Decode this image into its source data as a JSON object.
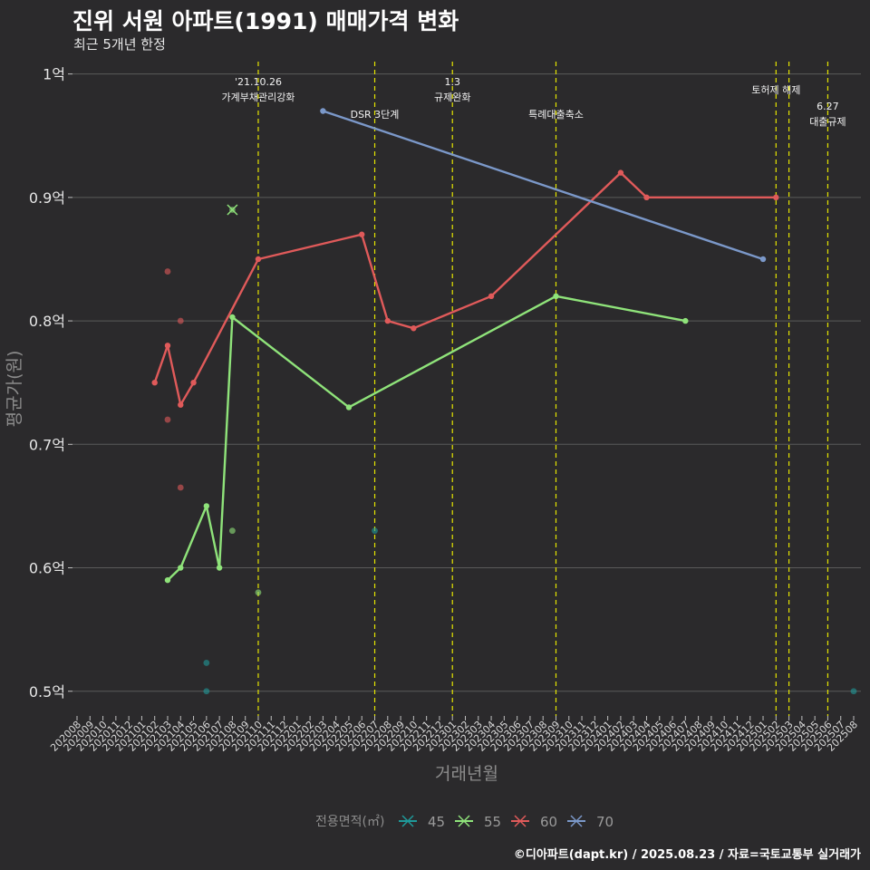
{
  "title": "진위 서원 아파트(1991) 매매가격 변화",
  "subtitle": "최근 5개년 한정",
  "caption": "©디아파트(dapt.kr) / 2025.08.23 / 자료=국토교통부 실거래가",
  "colors": {
    "background": "#2b2a2c",
    "grid": "#5a5a5a",
    "event_line": "#e6e600",
    "s45": "#1f9a9a",
    "s55": "#8fe37a",
    "s60": "#e05a5a",
    "s70": "#7b98c9"
  },
  "chart_data": {
    "type": "line",
    "title": "진위 서원 아파트(1991) 매매가격 변화",
    "xlabel": "거래년월",
    "ylabel": "평균가(원)",
    "ylim": [
      0.48,
      1.01
    ],
    "y_unit": "억",
    "y_ticks": [
      {
        "value": 0.5,
        "label": "0.5억"
      },
      {
        "value": 0.6,
        "label": "0.6억"
      },
      {
        "value": 0.7,
        "label": "0.7억"
      },
      {
        "value": 0.8,
        "label": "0.8억"
      },
      {
        "value": 0.9,
        "label": "0.9억"
      },
      {
        "value": 1.0,
        "label": "1억"
      }
    ],
    "x_categories": [
      "202008",
      "202009",
      "202010",
      "202011",
      "202012",
      "202101",
      "202102",
      "202103",
      "202104",
      "202105",
      "202106",
      "202107",
      "202108",
      "202109",
      "202110",
      "202111",
      "202112",
      "202201",
      "202202",
      "202203",
      "202204",
      "202205",
      "202206",
      "202207",
      "202208",
      "202209",
      "202210",
      "202211",
      "202212",
      "202301",
      "202302",
      "202303",
      "202304",
      "202305",
      "202306",
      "202307",
      "202308",
      "202309",
      "202310",
      "202311",
      "202312",
      "202401",
      "202402",
      "202403",
      "202404",
      "202405",
      "202406",
      "202407",
      "202408",
      "202409",
      "202410",
      "202411",
      "202412",
      "202501",
      "202502",
      "202503",
      "202504",
      "202505",
      "202506",
      "202507",
      "202508"
    ],
    "legend_title": "전용면적(㎡)",
    "legend_position": "bottom",
    "series": [
      {
        "name": "45",
        "color_key": "s45",
        "line": [],
        "points": [
          [
            "202106",
            0.523
          ],
          [
            "202106",
            0.5
          ],
          [
            "202207",
            0.63
          ],
          [
            "202508",
            0.5
          ]
        ]
      },
      {
        "name": "55",
        "color_key": "s55",
        "line": [
          [
            "202103",
            0.59
          ],
          [
            "202104",
            0.6
          ],
          [
            "202106",
            0.65
          ],
          [
            "202107",
            0.6
          ],
          [
            "202108",
            0.803
          ],
          [
            "202205",
            0.73
          ],
          [
            "202309",
            0.82
          ],
          [
            "202407",
            0.8
          ]
        ],
        "points": [
          [
            "202108",
            0.63
          ],
          [
            "202110",
            0.58
          ],
          [
            "202108",
            0.89
          ]
        ]
      },
      {
        "name": "60",
        "color_key": "s60",
        "line": [
          [
            "202102",
            0.75
          ],
          [
            "202103",
            0.78
          ],
          [
            "202104",
            0.732
          ],
          [
            "202105",
            0.75
          ],
          [
            "202110",
            0.85
          ],
          [
            "202206",
            0.87
          ],
          [
            "202208",
            0.8
          ],
          [
            "202210",
            0.794
          ],
          [
            "202304",
            0.82
          ],
          [
            "202402",
            0.92
          ],
          [
            "202404",
            0.9
          ],
          [
            "202502",
            0.9
          ]
        ],
        "points": [
          [
            "202103",
            0.84
          ],
          [
            "202104",
            0.8
          ],
          [
            "202103",
            0.72
          ],
          [
            "202104",
            0.665
          ]
        ]
      },
      {
        "name": "70",
        "color_key": "s70",
        "line": [
          [
            "202203",
            0.97
          ],
          [
            "202501",
            0.85
          ]
        ],
        "points": []
      }
    ],
    "events": [
      {
        "x": "202110",
        "lines": [
          "'21.10.26",
          "가계부채관리강화"
        ],
        "level": 0
      },
      {
        "x": "202207",
        "lines": [
          "DSR 3단계"
        ],
        "level": 2
      },
      {
        "x": "202301",
        "lines": [
          "1.3",
          "규제완화"
        ],
        "level": 0
      },
      {
        "x": "202309",
        "lines": [
          "특례대출축소"
        ],
        "level": 2
      },
      {
        "x": "202502",
        "lines": [
          "토허제 해제"
        ],
        "level": 1
      },
      {
        "x": "202503",
        "lines": [],
        "level": 1
      },
      {
        "x": "202506",
        "lines": [
          "6.27",
          "대출규제"
        ],
        "level": 2
      }
    ]
  }
}
